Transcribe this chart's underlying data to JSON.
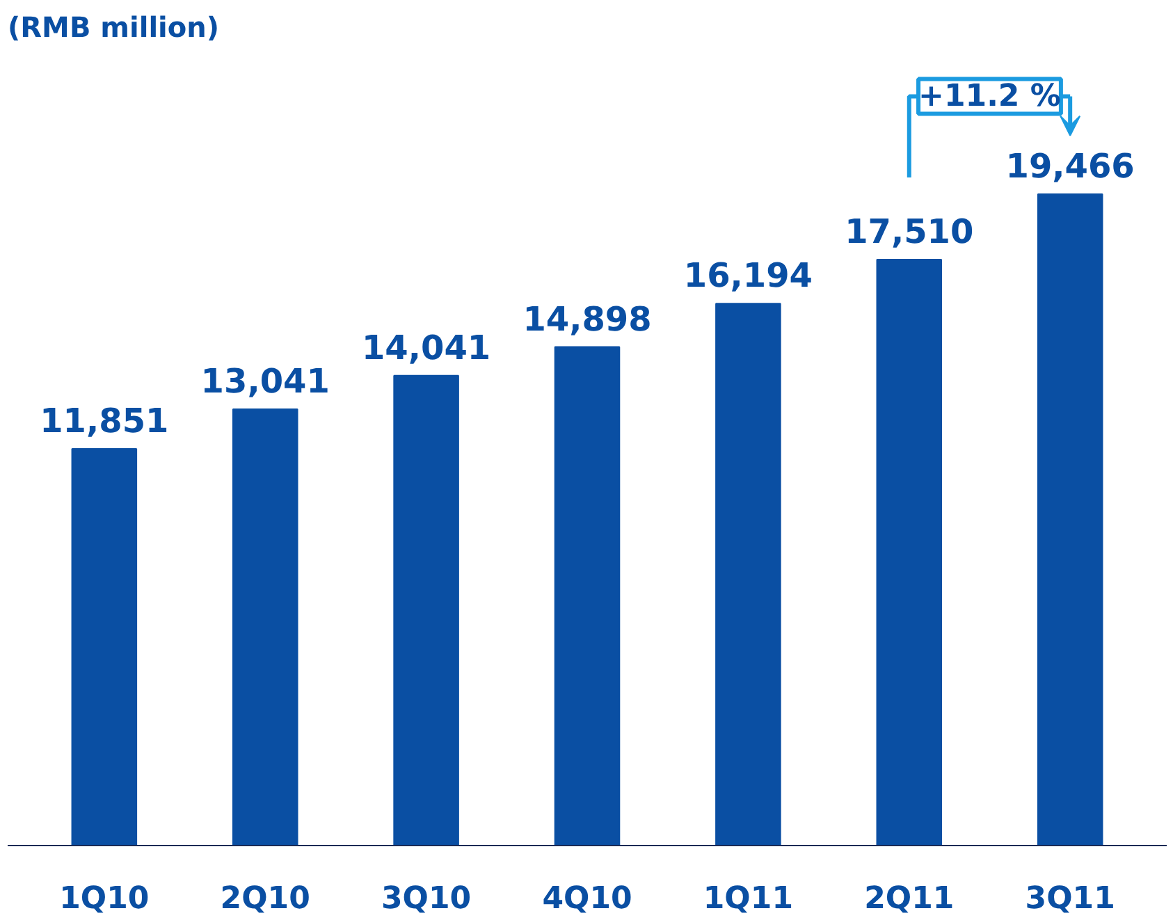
{
  "chart_data": {
    "type": "bar",
    "title": "(RMB million)",
    "categories": [
      "1Q10",
      "2Q10",
      "3Q10",
      "4Q10",
      "1Q11",
      "2Q11",
      "3Q11"
    ],
    "values": [
      11851,
      13041,
      14041,
      14898,
      16194,
      17510,
      19466
    ],
    "color": "#0a4fa3",
    "value_labels": [
      "11,851",
      "13,041",
      "14,041",
      "14,898",
      "16,194",
      "17,510",
      "19,466"
    ],
    "annotations": [
      "+11.2 %"
    ]
  }
}
